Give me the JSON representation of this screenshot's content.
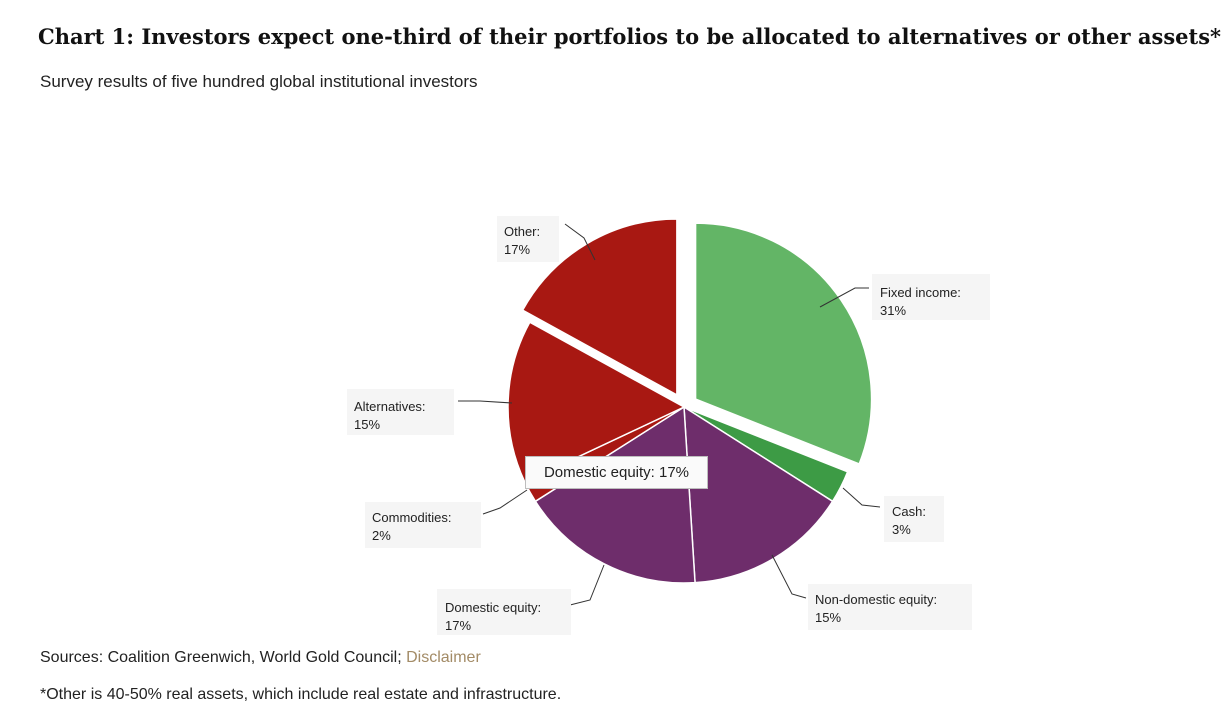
{
  "header": {
    "title": "Chart 1: Investors expect one-third of their portfolios to be allocated to alternatives or other assets*",
    "subtitle": "Survey results of five hundred global institutional investors"
  },
  "chart_data": {
    "type": "pie",
    "title": "Chart 1: Investors expect one-third of their portfolios to be allocated to alternatives or other assets*",
    "subtitle": "Survey results of five hundred global institutional investors",
    "slices": [
      {
        "name": "Fixed income",
        "value": 31,
        "label": "Fixed income:",
        "pct": "31%",
        "color": "#63b566",
        "exploded": true
      },
      {
        "name": "Cash",
        "value": 3,
        "label": "Cash:",
        "pct": "3%",
        "color": "#3d9b45",
        "exploded": false
      },
      {
        "name": "Non-domestic equity",
        "value": 15,
        "label": "Non-domestic equity:",
        "pct": "15%",
        "color": "#6e2d6b",
        "exploded": false
      },
      {
        "name": "Domestic equity",
        "value": 17,
        "label": "Domestic equity:",
        "pct": "17%",
        "color": "#6e2d6b",
        "exploded": false
      },
      {
        "name": "Commodities",
        "value": 2,
        "label": "Commodities:",
        "pct": "2%",
        "color": "#a81812",
        "exploded": false
      },
      {
        "name": "Alternatives",
        "value": 15,
        "label": "Alternatives:",
        "pct": "15%",
        "color": "#a81812",
        "exploded": false
      },
      {
        "name": "Other",
        "value": 17,
        "label": "Other:",
        "pct": "17%",
        "color": "#a81812",
        "exploded": true
      }
    ],
    "tooltip": "Domestic equity: 17%"
  },
  "footer": {
    "sources_prefix": "Sources: Coalition Greenwich, World Gold Council; ",
    "disclaimer_link": "Disclaimer",
    "footnote": "*Other is 40-50% real assets, which include real estate and infrastructure."
  }
}
